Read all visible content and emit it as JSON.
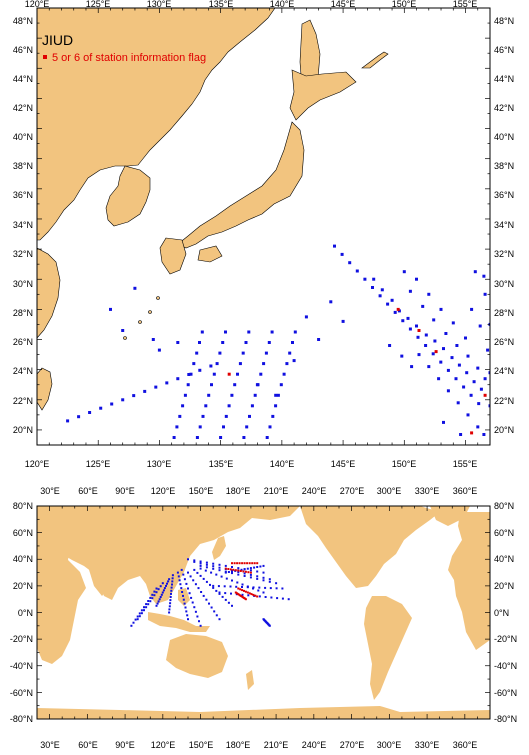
{
  "map_top": {
    "title": "JIUD",
    "legend_label": "5 or 6 of station information flag",
    "legend_color": "#e00000",
    "station_color": "#1010e0",
    "land_color": "#f2c47f",
    "lon_ticks": [
      "120°E",
      "125°E",
      "130°E",
      "135°E",
      "140°E",
      "145°E",
      "150°E",
      "155°E"
    ],
    "lat_ticks": [
      "48°N",
      "46°N",
      "44°N",
      "42°N",
      "40°N",
      "38°N",
      "36°N",
      "34°N",
      "32°N",
      "30°N",
      "28°N",
      "26°N",
      "24°N",
      "22°N",
      "20°N"
    ],
    "lon_range": [
      120,
      157
    ],
    "lat_range": [
      19,
      48
    ]
  },
  "map_bottom": {
    "lon_ticks": [
      "30°E",
      "60°E",
      "90°E",
      "120°E",
      "150°E",
      "180°E",
      "210°E",
      "240°E",
      "270°E",
      "300°E",
      "330°E",
      "360°E"
    ],
    "lat_ticks": [
      "80°N",
      "60°N",
      "40°N",
      "20°N",
      "0°N",
      "-20°N",
      "-40°N",
      "-60°N",
      "-80°N"
    ],
    "lon_range": [
      20,
      380
    ],
    "lat_range": [
      -80,
      80
    ]
  }
}
